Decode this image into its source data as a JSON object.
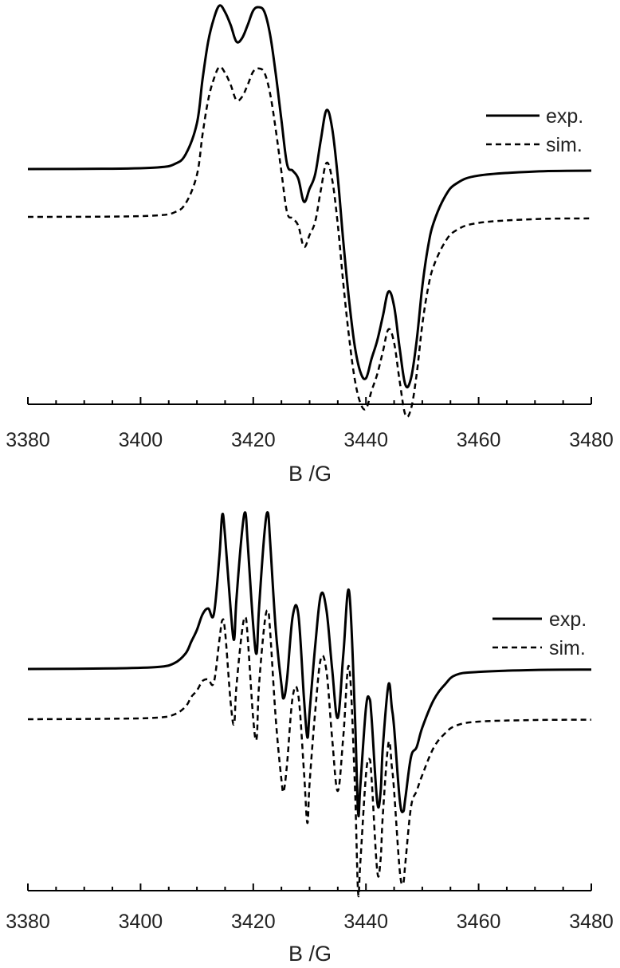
{
  "chart_data": [
    {
      "type": "line",
      "xlabel": "B /G",
      "ylabel": "",
      "xlim": [
        3380,
        3480
      ],
      "xticks": [
        "3380",
        "3400",
        "3420",
        "3440",
        "3460",
        "3480"
      ],
      "legend": {
        "placement": "top-right",
        "entries": [
          "exp.",
          "sim."
        ]
      },
      "series": [
        {
          "name": "exp.",
          "style": "solid",
          "x": [
            3380,
            3395,
            3403,
            3406,
            3408,
            3410,
            3411,
            3412,
            3413,
            3414,
            3415,
            3416,
            3417,
            3418,
            3419,
            3420,
            3421,
            3422,
            3423,
            3424,
            3425,
            3426,
            3427,
            3428,
            3429,
            3430,
            3431,
            3432,
            3433,
            3434,
            3435,
            3436,
            3437,
            3438,
            3439,
            3440,
            3441,
            3442,
            3443,
            3444,
            3445,
            3446,
            3447,
            3448,
            3449,
            3450,
            3451,
            3452,
            3454,
            3456,
            3460,
            3470,
            3480
          ],
          "y": [
            0,
            0.2,
            1,
            3,
            9,
            28,
            55,
            78,
            92,
            100,
            96,
            88,
            78,
            80,
            88,
            97,
            99,
            96,
            82,
            58,
            30,
            3,
            -1,
            -6,
            -20,
            -12,
            -3,
            18,
            36,
            25,
            -5,
            -45,
            -80,
            -108,
            -124,
            -128,
            -116,
            -105,
            -90,
            -75,
            -84,
            -110,
            -132,
            -128,
            -105,
            -72,
            -48,
            -33,
            -17,
            -9,
            -4,
            -1.5,
            -1
          ]
        },
        {
          "name": "sim.",
          "style": "dashed",
          "x": [
            3380,
            3395,
            3403,
            3406,
            3408,
            3410,
            3411,
            3412,
            3413,
            3414,
            3415,
            3416,
            3417,
            3418,
            3419,
            3420,
            3421,
            3422,
            3423,
            3424,
            3425,
            3426,
            3427,
            3428,
            3429,
            3430,
            3431,
            3432,
            3433,
            3434,
            3435,
            3436,
            3437,
            3438,
            3439,
            3440,
            3441,
            3442,
            3443,
            3444,
            3445,
            3446,
            3447,
            3448,
            3449,
            3450,
            3451,
            3452,
            3454,
            3456,
            3460,
            3470,
            3480
          ],
          "y": [
            0,
            0.2,
            1,
            3,
            9,
            28,
            55,
            78,
            92,
            100,
            96,
            88,
            78,
            80,
            88,
            97,
            99,
            96,
            82,
            58,
            30,
            3,
            -1,
            -6,
            -20,
            -12,
            -3,
            18,
            36,
            25,
            -5,
            -45,
            -80,
            -108,
            -124,
            -128,
            -116,
            -105,
            -90,
            -75,
            -84,
            -110,
            -132,
            -128,
            -105,
            -72,
            -48,
            -33,
            -17,
            -9,
            -4,
            -1.5,
            -1
          ]
        }
      ]
    },
    {
      "type": "line",
      "xlabel": "B /G",
      "ylabel": "",
      "xlim": [
        3380,
        3480
      ],
      "xticks": [
        "3380",
        "3400",
        "3420",
        "3440",
        "3460",
        "3480"
      ],
      "legend": {
        "placement": "right",
        "entries": [
          "exp.",
          "sim."
        ]
      },
      "series": [
        {
          "name": "exp.",
          "style": "solid",
          "x": [
            3380,
            3395,
            3403,
            3406,
            3408,
            3409,
            3410,
            3411,
            3412,
            3413,
            3414,
            3414.5,
            3415,
            3416,
            3416.6,
            3417,
            3418,
            3418.6,
            3419,
            3420,
            3420.6,
            3421,
            3422,
            3422.6,
            3423,
            3424,
            3425,
            3425.4,
            3426,
            3427,
            3428,
            3429,
            3429.6,
            3430,
            3431,
            3432,
            3433,
            3434,
            3435,
            3436,
            3437,
            3438,
            3438.6,
            3439,
            3440,
            3440.6,
            3441,
            3442,
            3442.6,
            3443,
            3444,
            3444.6,
            3445,
            3446,
            3446.6,
            3447,
            3448,
            3449,
            3450,
            3452,
            3454,
            3456,
            3460,
            3470,
            3480
          ],
          "y": [
            0,
            0.3,
            1,
            3,
            8,
            14,
            20,
            28,
            31,
            28,
            58,
            79,
            68,
            30,
            15,
            35,
            70,
            80,
            65,
            22,
            8,
            30,
            70,
            80,
            65,
            20,
            -8,
            -15,
            -5,
            27,
            28,
            -15,
            -35,
            -22,
            12,
            38,
            30,
            0,
            -25,
            8,
            40,
            -20,
            -73,
            -60,
            -20,
            -15,
            -25,
            -68,
            -63,
            -40,
            -8,
            -20,
            -30,
            -67,
            -73,
            -66,
            -45,
            -40,
            -30,
            -16,
            -8,
            -3,
            -1.5,
            -0.5,
            -0.3
          ]
        },
        {
          "name": "sim.",
          "style": "dashed",
          "x": [
            3380,
            3395,
            3403,
            3406,
            3408,
            3409,
            3410,
            3411,
            3412,
            3413,
            3414,
            3414.5,
            3415,
            3416,
            3416.6,
            3417,
            3418,
            3418.6,
            3419,
            3420,
            3420.6,
            3421,
            3422,
            3422.6,
            3423,
            3424,
            3425,
            3425.4,
            3426,
            3427,
            3428,
            3429,
            3429.6,
            3430,
            3431,
            3432,
            3433,
            3434,
            3435,
            3436,
            3437,
            3438,
            3438.6,
            3439,
            3440,
            3440.6,
            3441,
            3442,
            3442.6,
            3443,
            3444,
            3444.6,
            3445,
            3446,
            3446.6,
            3447,
            3448,
            3449,
            3450,
            3452,
            3454,
            3456,
            3460,
            3470,
            3480
          ],
          "y": [
            0,
            0.3,
            1,
            3,
            8,
            14,
            18,
            24,
            25,
            23,
            50,
            62,
            55,
            10,
            -3,
            20,
            55,
            64,
            52,
            0,
            -12,
            20,
            60,
            68,
            55,
            0,
            -38,
            -45,
            -28,
            14,
            15,
            -33,
            -65,
            -40,
            5,
            38,
            30,
            -12,
            -45,
            -10,
            33,
            -38,
            -108,
            -90,
            -35,
            -25,
            -37,
            -95,
            -88,
            -60,
            -15,
            -30,
            -45,
            -95,
            -103,
            -90,
            -55,
            -45,
            -35,
            -18,
            -9,
            -4,
            -1.5,
            -0.5,
            -0.3
          ]
        }
      ]
    }
  ]
}
